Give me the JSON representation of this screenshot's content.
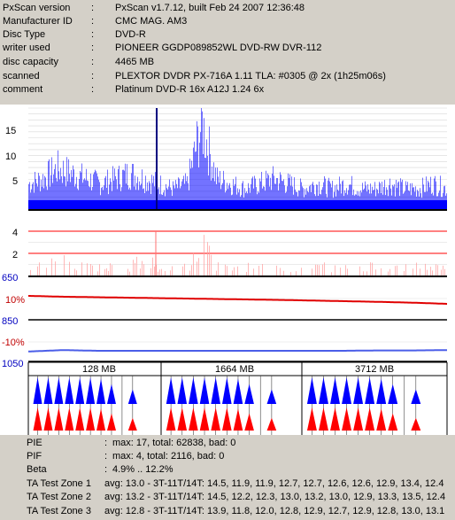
{
  "info": [
    {
      "label": "PxScan version",
      "value": "PxScan v1.7.12, built Feb 24 2007 12:36:48"
    },
    {
      "label": "Manufacturer ID",
      "value": "CMC MAG. AM3"
    },
    {
      "label": "Disc Type",
      "value": "DVD-R"
    },
    {
      "label": "writer used",
      "value": "PIONEER GGDP089852WL DVD-RW DVR-112"
    },
    {
      "label": "disc capacity",
      "value": "4465 MB"
    },
    {
      "label": "scanned",
      "value": "PLEXTOR DVDR PX-716A 1.11 TLA: #0305 @ 2x (1h25m06s)"
    },
    {
      "label": "comment",
      "value": "Platinum DVD-R 16x A12J 1.24 6x"
    }
  ],
  "charts": {
    "pie_ticks": [
      "15",
      "10",
      "5"
    ],
    "pif_ticks": [
      "4",
      "2"
    ],
    "jitter_top": "650",
    "jitter_pct": "10%",
    "jitter_mid": "850",
    "beta_pct": "-10%",
    "beta_bottom": "1050",
    "ta_headers": [
      "128 MB",
      "1664 MB",
      "3712 MB"
    ],
    "colors": {
      "pie": "#0000ff",
      "pif": "#ff0000",
      "jitter": "#e00000",
      "beta": "#4b5ee8",
      "axis_blue": "#0000c0"
    }
  },
  "chart_data": [
    {
      "type": "area",
      "title": "",
      "ylabel": "",
      "ylim": [
        0,
        17
      ],
      "yticks": [
        15,
        10,
        5
      ],
      "series": [
        {
          "values": [
            5,
            6,
            8,
            7,
            6,
            5,
            6,
            7,
            6,
            5,
            4,
            5,
            17,
            6,
            5,
            4,
            5,
            6,
            5,
            4,
            5,
            4,
            5,
            4,
            4,
            5,
            4,
            4,
            5,
            4
          ]
        }
      ]
    },
    {
      "type": "area",
      "title": "",
      "ylabel": "",
      "ylim": [
        0,
        4
      ],
      "yticks": [
        4,
        2
      ],
      "series": [
        {
          "values": [
            1,
            1,
            2,
            1,
            1,
            1,
            1,
            1,
            2,
            1,
            1,
            1,
            4,
            1,
            1,
            1,
            1,
            1,
            1,
            1,
            1,
            1,
            1,
            1,
            1,
            1,
            1,
            1,
            1,
            1
          ]
        }
      ]
    },
    {
      "type": "line",
      "title": "",
      "ylabel": "",
      "yticks": [
        "10%"
      ],
      "series": [
        {
          "values": [
            10.0,
            9.5,
            9.2,
            8.9,
            8.6,
            8.3,
            8.0,
            7.7,
            7.4,
            7.0,
            6.6,
            6.2,
            5.7,
            5.0
          ]
        }
      ]
    },
    {
      "type": "line",
      "title": "",
      "ylabel": "",
      "yticks": [
        "-10%"
      ],
      "series": [
        {
          "values": [
            -11.0,
            -10.6,
            -10.8,
            -10.8,
            -10.8,
            -10.8,
            -10.8,
            -10.8,
            -10.8,
            -10.8,
            -10.7,
            -10.7,
            -10.6
          ]
        }
      ]
    }
  ],
  "stats": {
    "pie": {
      "label": "PIE",
      "value": "max: 17, total: 62838, bad: 0"
    },
    "pif": {
      "label": "PIF",
      "value": "max: 4, total: 2116, bad: 0"
    },
    "beta": {
      "label": "Beta",
      "value": "4.9% .. 12.2%"
    },
    "ta": [
      {
        "label": "TA Test Zone 1",
        "value": "avg: 13.0 - 3T-11T/14T: 14.5, 11.9, 11.9, 12.7, 12.7, 12.6, 12.6, 12.9, 13.4, 12.4"
      },
      {
        "label": "TA Test Zone 2",
        "value": "avg: 13.2 - 3T-11T/14T: 14.5, 12.2, 12.3, 13.0, 13.2, 13.0, 12.9, 13.3, 13.5, 12.4"
      },
      {
        "label": "TA Test Zone 3",
        "value": "avg: 12.8 - 3T-11T/14T: 13.9, 11.8, 12.0, 12.8, 12.9, 12.7, 12.9, 12.8, 13.0, 13.1"
      }
    ]
  }
}
